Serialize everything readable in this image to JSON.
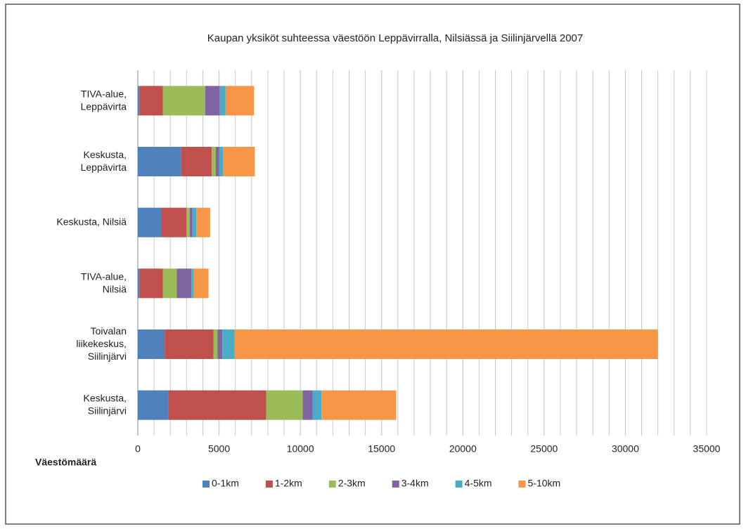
{
  "chart_data": {
    "type": "stacked_bar_horizontal",
    "title": "Kaupan yksiköt suhteessa väestöön Leppävirralla, Nilsiässä ja Siilinjärvellä 2007",
    "x_label": "Väestömäärä",
    "categories": [
      "TIVA-alue,\nLeppävirta",
      "Keskusta,\nLeppävirta",
      "Keskusta, Nilsiä",
      "TIVA-alue,\nNilsiä",
      "Toivalan\nliikekeskus,\nSiilinjärvi",
      "Keskusta,\nSiilinjärvi"
    ],
    "series": [
      {
        "name": "0-1km",
        "color": "#4f81bd",
        "values": [
          100,
          2650,
          1450,
          100,
          1650,
          1900
        ]
      },
      {
        "name": "1-2km",
        "color": "#c0504d",
        "values": [
          1450,
          1900,
          1550,
          1450,
          3000,
          6000
        ]
      },
      {
        "name": "2-3km",
        "color": "#9bbb59",
        "values": [
          2600,
          250,
          200,
          850,
          250,
          2250
        ]
      },
      {
        "name": "3-4km",
        "color": "#8064a2",
        "values": [
          900,
          200,
          150,
          900,
          300,
          600
        ]
      },
      {
        "name": "4-5km",
        "color": "#4bacc6",
        "values": [
          350,
          250,
          250,
          150,
          750,
          550
        ]
      },
      {
        "name": "5-10km",
        "color": "#f79646",
        "values": [
          1750,
          1950,
          850,
          900,
          26050,
          4600
        ]
      }
    ],
    "xlim": [
      0,
      35000
    ],
    "xticks": [
      0,
      5000,
      10000,
      15000,
      20000,
      25000,
      30000,
      35000
    ],
    "minor_grid_interval": 1000,
    "grid": true,
    "legend": "bottom"
  }
}
